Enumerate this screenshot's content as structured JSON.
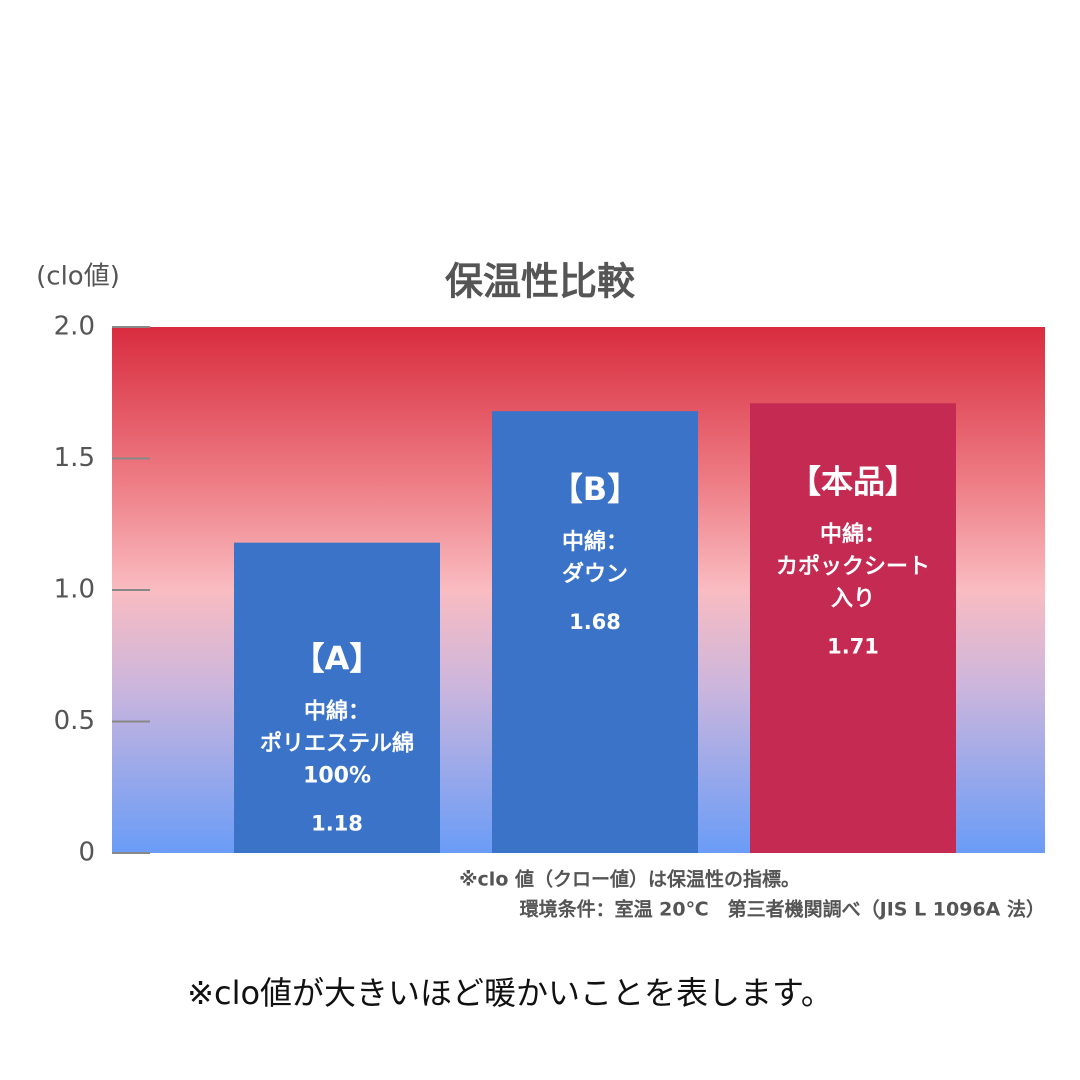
{
  "chart_data": {
    "type": "bar",
    "title": "保温性比較",
    "y_label": "(clo値)",
    "categories": [
      "【A】",
      "【B】",
      "【本品】"
    ],
    "category_notes": [
      [
        "中綿：",
        "ポリエステル綿",
        "100%"
      ],
      [
        "中綿：",
        "ダウン"
      ],
      [
        "中綿：",
        "カポックシート",
        "入り"
      ]
    ],
    "values": [
      1.18,
      1.68,
      1.71
    ],
    "colors": [
      "#3b73c9",
      "#3b73c9",
      "#c42a52"
    ],
    "ylim": [
      0,
      2
    ],
    "yticks": [
      0,
      0.5,
      {
        "value": 1,
        "label": "1.0"
      },
      1.5,
      {
        "value": 2,
        "label": "2.0"
      }
    ],
    "notes": [
      "※clo 値（クロー値）は保温性の指標。",
      "環境条件：室温 20℃　第三者機関調べ（JIS L 1096A 法）"
    ]
  },
  "caption": "※clo値が大きいほど暖かいことを表します。"
}
